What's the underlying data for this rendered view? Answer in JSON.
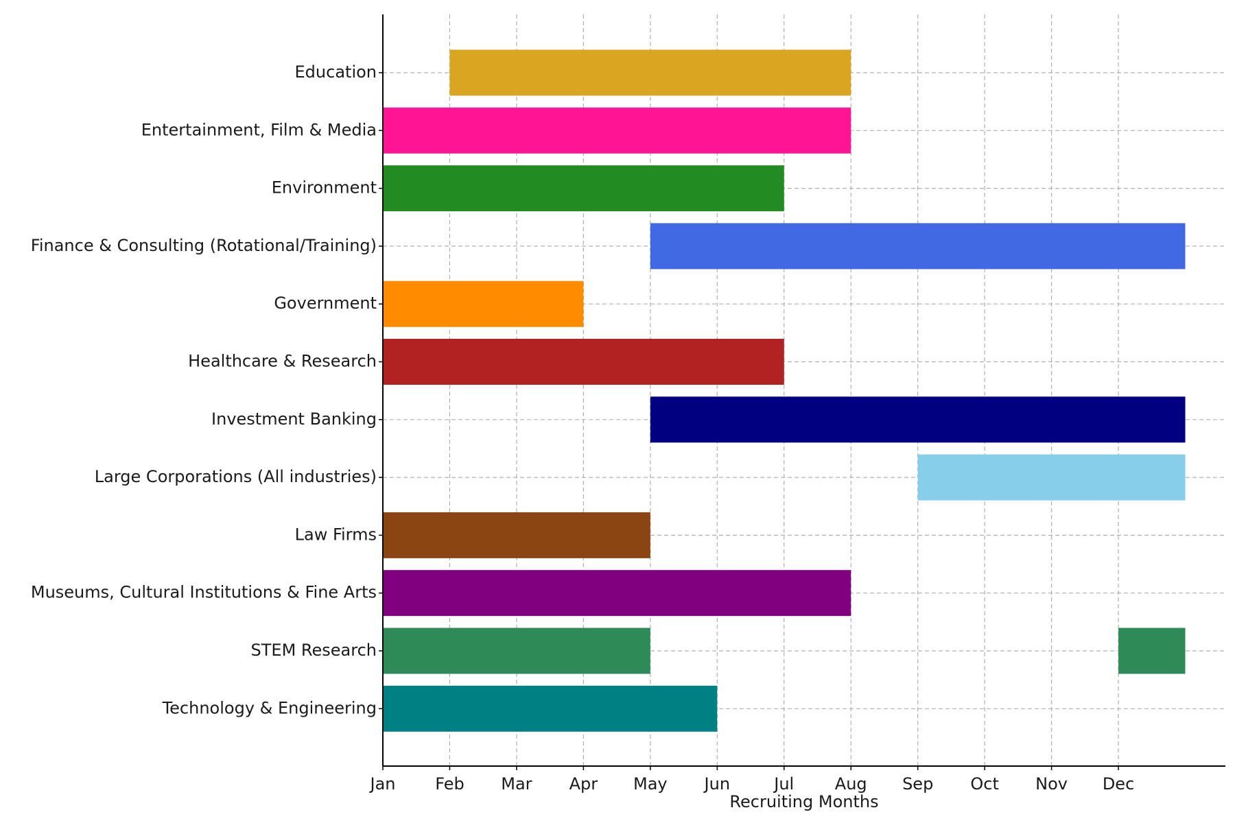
{
  "chart_data": {
    "type": "bar",
    "orientation": "horizontal",
    "title": "",
    "xlabel": "Recruiting Months",
    "ylabel": "",
    "x_ticks": [
      "Jan",
      "Feb",
      "Mar",
      "Apr",
      "May",
      "Jun",
      "Jul",
      "Aug",
      "Sep",
      "Oct",
      "Nov",
      "Dec"
    ],
    "xlim": [
      0,
      12.6
    ],
    "grid": true,
    "legend": "none",
    "categories": [
      "Education",
      "Entertainment, Film & Media",
      "Environment",
      "Finance & Consulting (Rotational/Training)",
      "Government",
      "Healthcare & Research",
      "Investment Banking",
      "Large Corporations (All industries)",
      "Law Firms",
      "Museums, Cultural Institutions & Fine Arts",
      "STEM Research",
      "Technology & Engineering"
    ],
    "bars": [
      {
        "category": "Education",
        "start": "Feb",
        "end": "Aug",
        "color": "#DAA520"
      },
      {
        "category": "Entertainment, Film & Media",
        "start": "Jan",
        "end": "Aug",
        "color": "#FF1493"
      },
      {
        "category": "Environment",
        "start": "Jan",
        "end": "Jul",
        "color": "#228B22"
      },
      {
        "category": "Finance & Consulting (Rotational/Training)",
        "start": "May",
        "end": "end of Dec",
        "color": "#4169E1"
      },
      {
        "category": "Government",
        "start": "Jan",
        "end": "Apr",
        "color": "#FF8C00"
      },
      {
        "category": "Healthcare & Research",
        "start": "Jan",
        "end": "Jul",
        "color": "#B22222"
      },
      {
        "category": "Investment Banking",
        "start": "May",
        "end": "end of Dec",
        "color": "#000080"
      },
      {
        "category": "Large Corporations (All industries)",
        "start": "Sep",
        "end": "end of Dec",
        "color": "#87CEEB"
      },
      {
        "category": "Law Firms",
        "start": "Jan",
        "end": "May",
        "color": "#8B4513"
      },
      {
        "category": "Museums, Cultural Institutions & Fine Arts",
        "start": "Jan",
        "end": "Aug",
        "color": "#800080"
      },
      {
        "category": "STEM Research",
        "start": "Jan",
        "end": "May",
        "color": "#2E8B57"
      },
      {
        "category": "STEM Research",
        "start": "Dec",
        "end": "end of Dec",
        "color": "#2E8B57"
      },
      {
        "category": "Technology & Engineering",
        "start": "Jan",
        "end": "Jun",
        "color": "#008080"
      }
    ]
  }
}
